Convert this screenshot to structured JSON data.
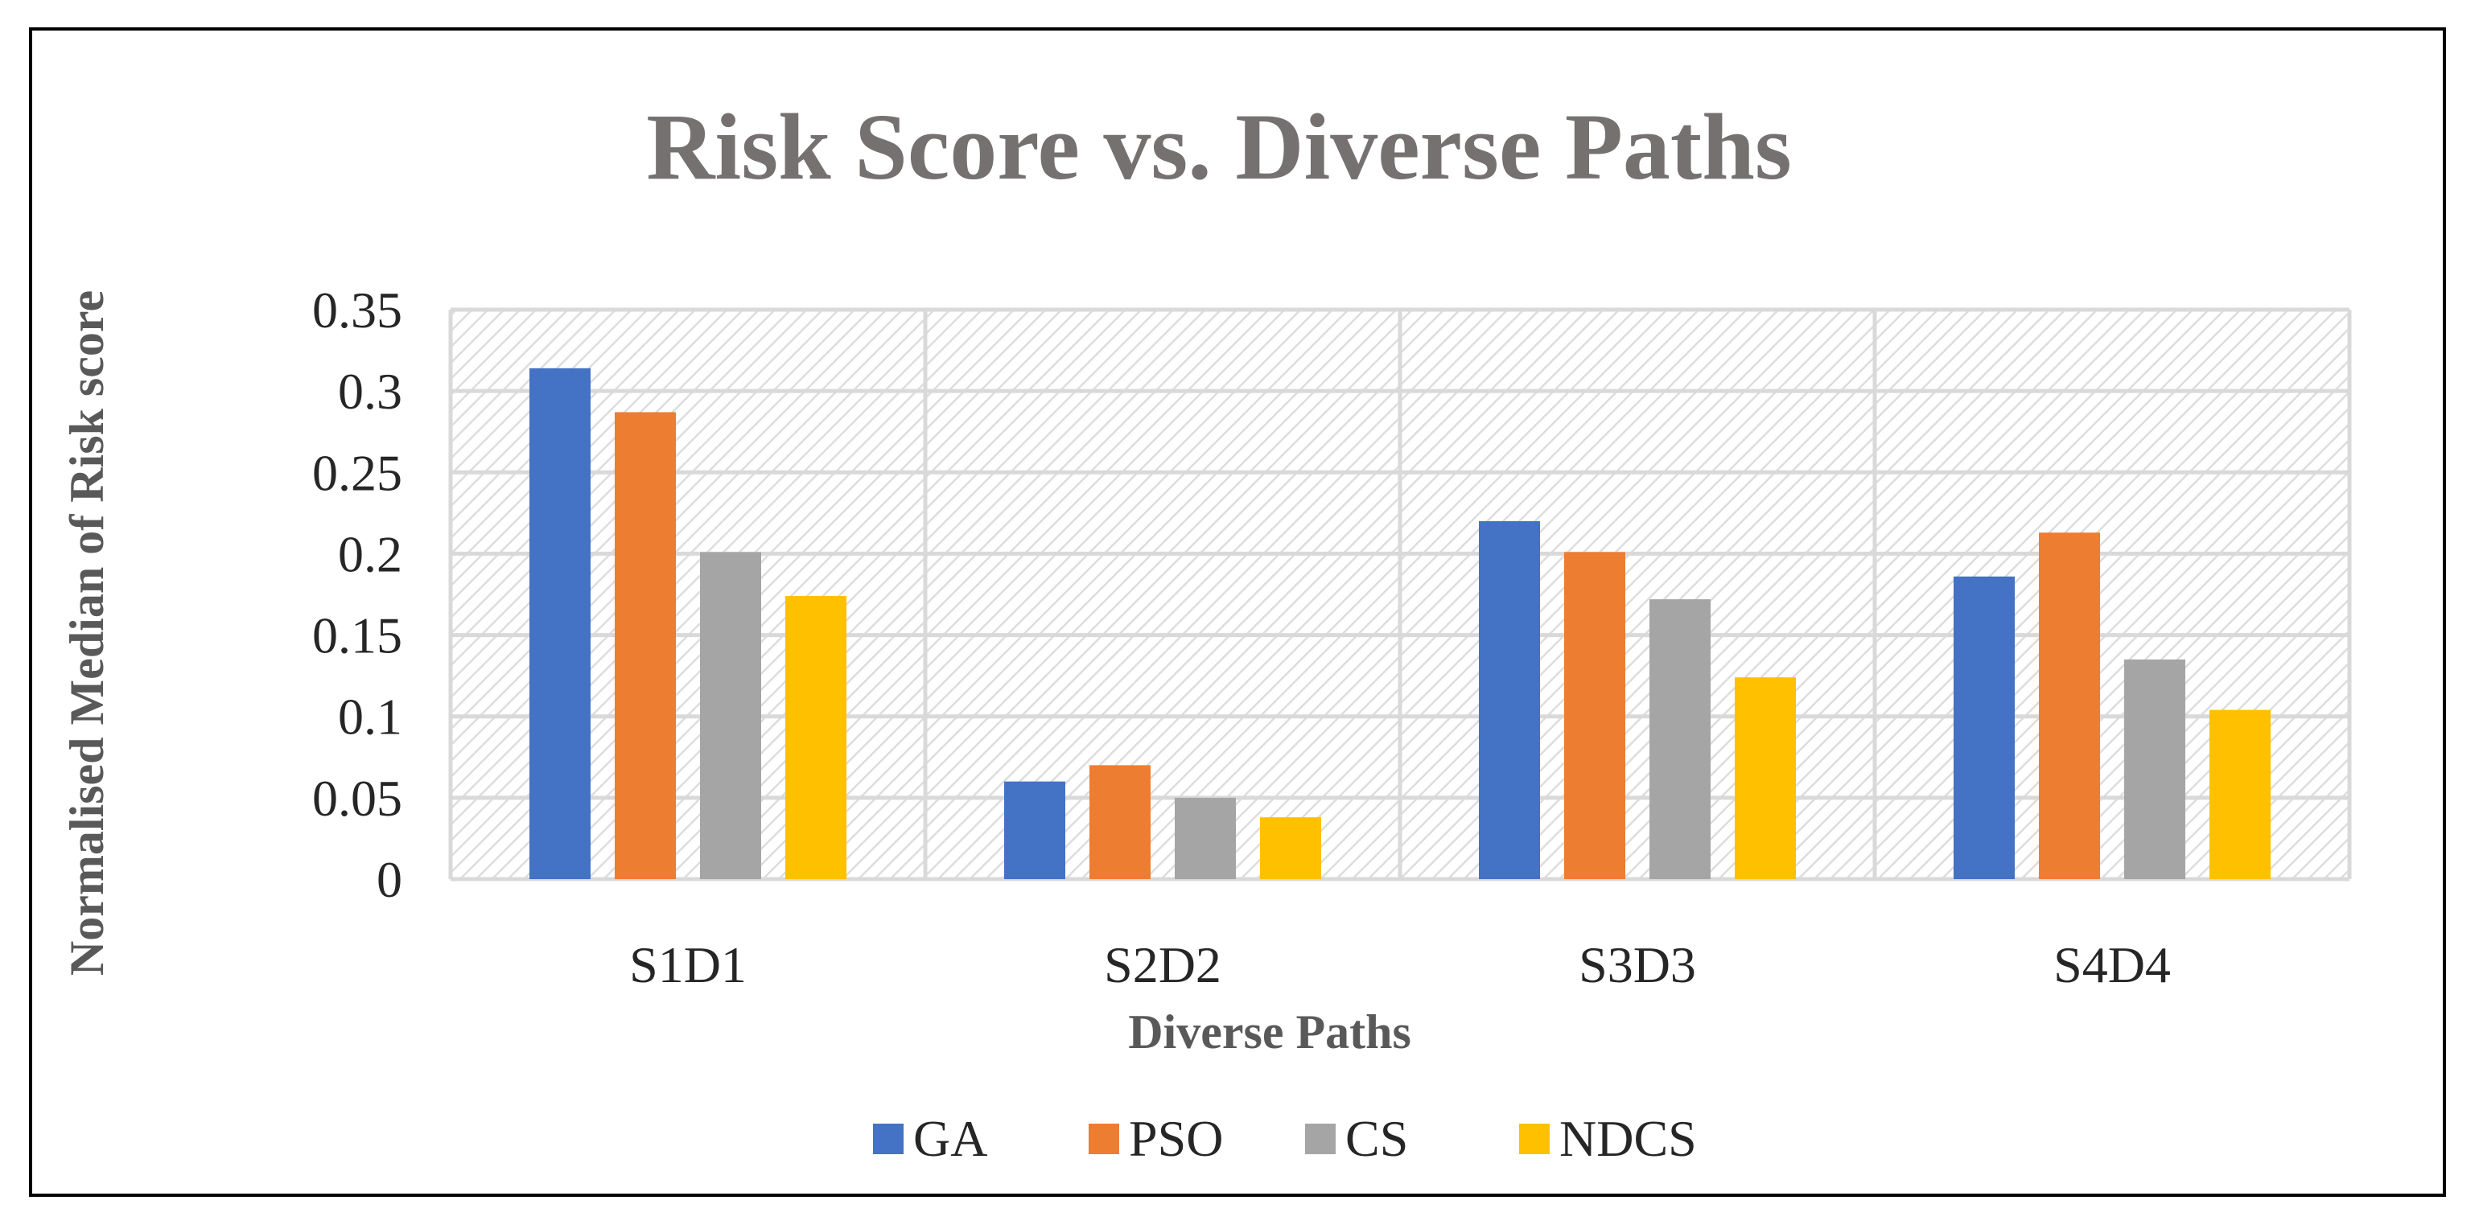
{
  "chart_data": {
    "type": "bar",
    "title": "Risk Score vs. Diverse Paths",
    "xlabel": "Diverse Paths",
    "ylabel": "Normalised Median of Risk score",
    "categories": [
      "S1D1",
      "S2D2",
      "S3D3",
      "S4D4"
    ],
    "ylim": [
      0,
      0.35
    ],
    "yticks": [
      "0",
      "0.05",
      "0.1",
      "0.15",
      "0.2",
      "0.25",
      "0.3",
      "0.35"
    ],
    "grid": true,
    "legend_position": "bottom",
    "series": [
      {
        "name": "GA",
        "color": "#4472C4",
        "values": [
          0.314,
          0.06,
          0.22,
          0.186
        ]
      },
      {
        "name": "PSO",
        "color": "#ED7D31",
        "values": [
          0.287,
          0.07,
          0.201,
          0.213
        ]
      },
      {
        "name": "CS",
        "color": "#A5A5A5",
        "values": [
          0.201,
          0.05,
          0.172,
          0.135
        ]
      },
      {
        "name": "NDCS",
        "color": "#FFC000",
        "values": [
          0.174,
          0.038,
          0.124,
          0.104
        ]
      }
    ]
  },
  "colors": {
    "title_text": "#767171",
    "axis_title_text": "#595959",
    "tick_text": "#262626",
    "grid": "#D9D9D9",
    "plot_hatch": "#D9D9D9"
  }
}
